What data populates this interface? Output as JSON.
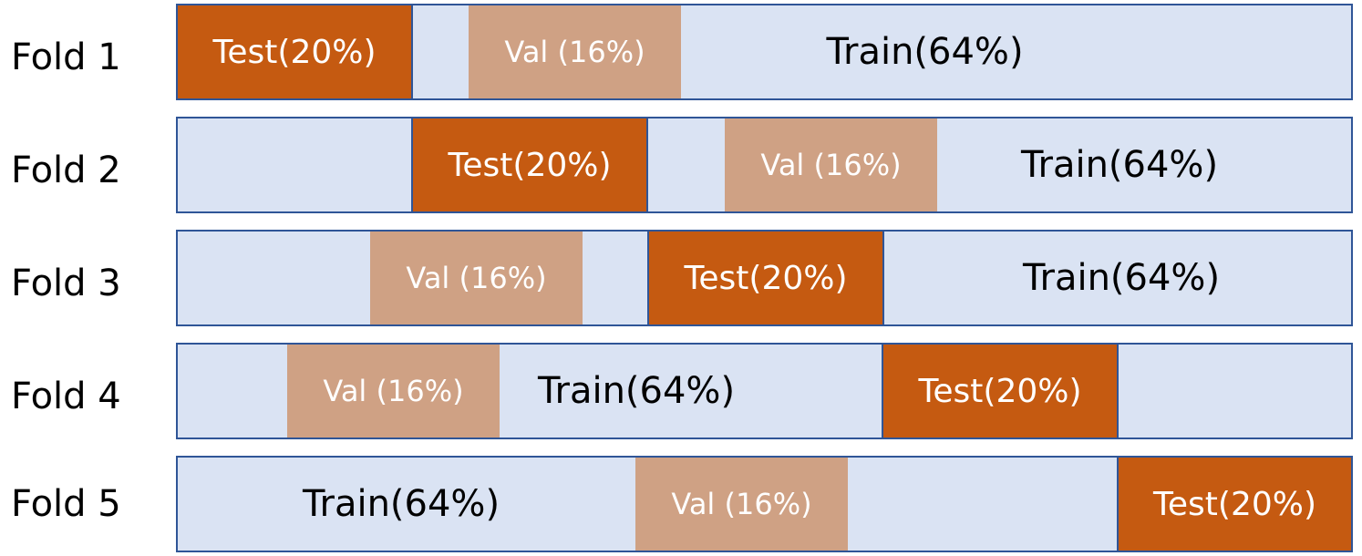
{
  "colors": {
    "train_bg": "#dae3f3",
    "border": "#2f5597",
    "test_bg": "#c55a11",
    "val_bg": "#cfa184"
  },
  "folds": [
    {
      "label": "Fold 1",
      "test": "Test(20%)",
      "val": "Val (16%)",
      "train": "Train(64%)"
    },
    {
      "label": "Fold 2",
      "test": "Test(20%)",
      "val": "Val (16%)",
      "train": "Train(64%)"
    },
    {
      "label": "Fold 3",
      "test": "Test(20%)",
      "val": "Val (16%)",
      "train": "Train(64%)"
    },
    {
      "label": "Fold 4",
      "test": "Test(20%)",
      "val": "Val (16%)",
      "train": "Train(64%)"
    },
    {
      "label": "Fold 5",
      "test": "Test(20%)",
      "val": "Val (16%)",
      "train": "Train(64%)"
    }
  ]
}
